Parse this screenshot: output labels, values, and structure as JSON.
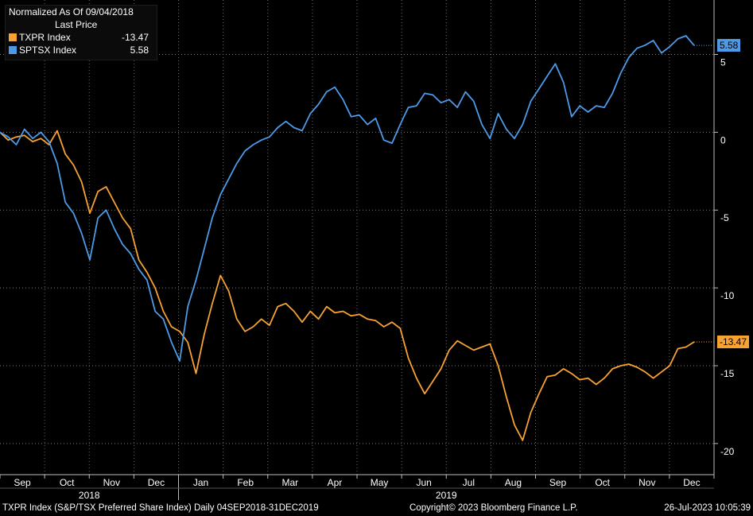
{
  "chart_data": {
    "type": "line",
    "legend": {
      "title": "Normalized As Of 09/04/2018",
      "subtitle": "Last Price",
      "placement": "top-left"
    },
    "y_axis": {
      "ticks": [
        5,
        0,
        -5,
        -10,
        -15,
        -20
      ],
      "ylim": [
        -22,
        8.5
      ],
      "side": "right"
    },
    "x_axis": {
      "months": [
        "Sep",
        "Oct",
        "Nov",
        "Dec",
        "Jan",
        "Feb",
        "Mar",
        "Apr",
        "May",
        "Jun",
        "Jul",
        "Aug",
        "Sep",
        "Oct",
        "Nov",
        "Dec"
      ],
      "years": [
        "2018",
        "2019"
      ]
    },
    "series": [
      {
        "name": "TXPR Index",
        "last_label": "-13.47",
        "color": "#f7a232",
        "values": [
          0.0,
          -0.5,
          -0.3,
          -0.2,
          -0.6,
          -0.4,
          -0.8,
          0.1,
          -1.4,
          -2.1,
          -3.2,
          -5.2,
          -3.8,
          -3.5,
          -4.5,
          -5.5,
          -6.2,
          -8.2,
          -9.0,
          -10.0,
          -11.5,
          -12.5,
          -12.8,
          -13.5,
          -15.5,
          -13.0,
          -11.0,
          -9.2,
          -10.2,
          -12.0,
          -12.8,
          -12.5,
          -12.0,
          -12.4,
          -11.2,
          -11.0,
          -11.5,
          -12.2,
          -11.5,
          -12.0,
          -11.2,
          -11.6,
          -11.5,
          -11.8,
          -11.7,
          -12.0,
          -12.1,
          -12.5,
          -12.2,
          -12.6,
          -14.5,
          -15.8,
          -16.8,
          -16.0,
          -15.2,
          -14.0,
          -13.4,
          -13.7,
          -14.0,
          -13.8,
          -13.6,
          -15.0,
          -17.0,
          -18.8,
          -19.8,
          -18.0,
          -16.8,
          -15.7,
          -15.6,
          -15.2,
          -15.5,
          -15.9,
          -15.8,
          -16.2,
          -15.8,
          -15.2,
          -15.0,
          -14.9,
          -15.1,
          -15.4,
          -15.8,
          -15.4,
          -15.0,
          -13.9,
          -13.8,
          -13.47
        ]
      },
      {
        "name": "SPTSX Index",
        "last_label": "5.58",
        "color": "#4d9be8",
        "values": [
          0.0,
          -0.3,
          -0.8,
          0.2,
          -0.4,
          0.0,
          -0.6,
          -2.0,
          -4.5,
          -5.2,
          -6.5,
          -8.2,
          -5.5,
          -5.0,
          -6.2,
          -7.2,
          -7.8,
          -8.8,
          -9.5,
          -11.5,
          -12.0,
          -13.5,
          -14.7,
          -11.2,
          -9.5,
          -7.5,
          -5.5,
          -4.0,
          -3.0,
          -2.0,
          -1.2,
          -0.8,
          -0.5,
          -0.3,
          0.3,
          0.7,
          0.3,
          0.1,
          1.2,
          1.8,
          2.6,
          2.9,
          2.1,
          1.0,
          1.1,
          0.5,
          0.9,
          -0.5,
          -0.7,
          0.5,
          1.6,
          1.7,
          2.5,
          2.4,
          1.9,
          2.1,
          1.6,
          2.6,
          2.0,
          0.5,
          -0.4,
          1.2,
          0.2,
          -0.4,
          0.5,
          2.0,
          2.8,
          3.6,
          4.4,
          3.2,
          1.0,
          1.7,
          1.3,
          1.7,
          1.6,
          2.5,
          3.8,
          4.8,
          5.4,
          5.6,
          5.9,
          5.1,
          5.5,
          6.0,
          6.2,
          5.58
        ]
      }
    ]
  },
  "footer": {
    "left": "TXPR Index (S&P/TSX Preferred Share Index)  Daily 04SEP2018-31DEC2019",
    "center": "Copyright© 2023 Bloomberg Finance L.P.",
    "right": "26-Jul-2023 10:05:39"
  }
}
